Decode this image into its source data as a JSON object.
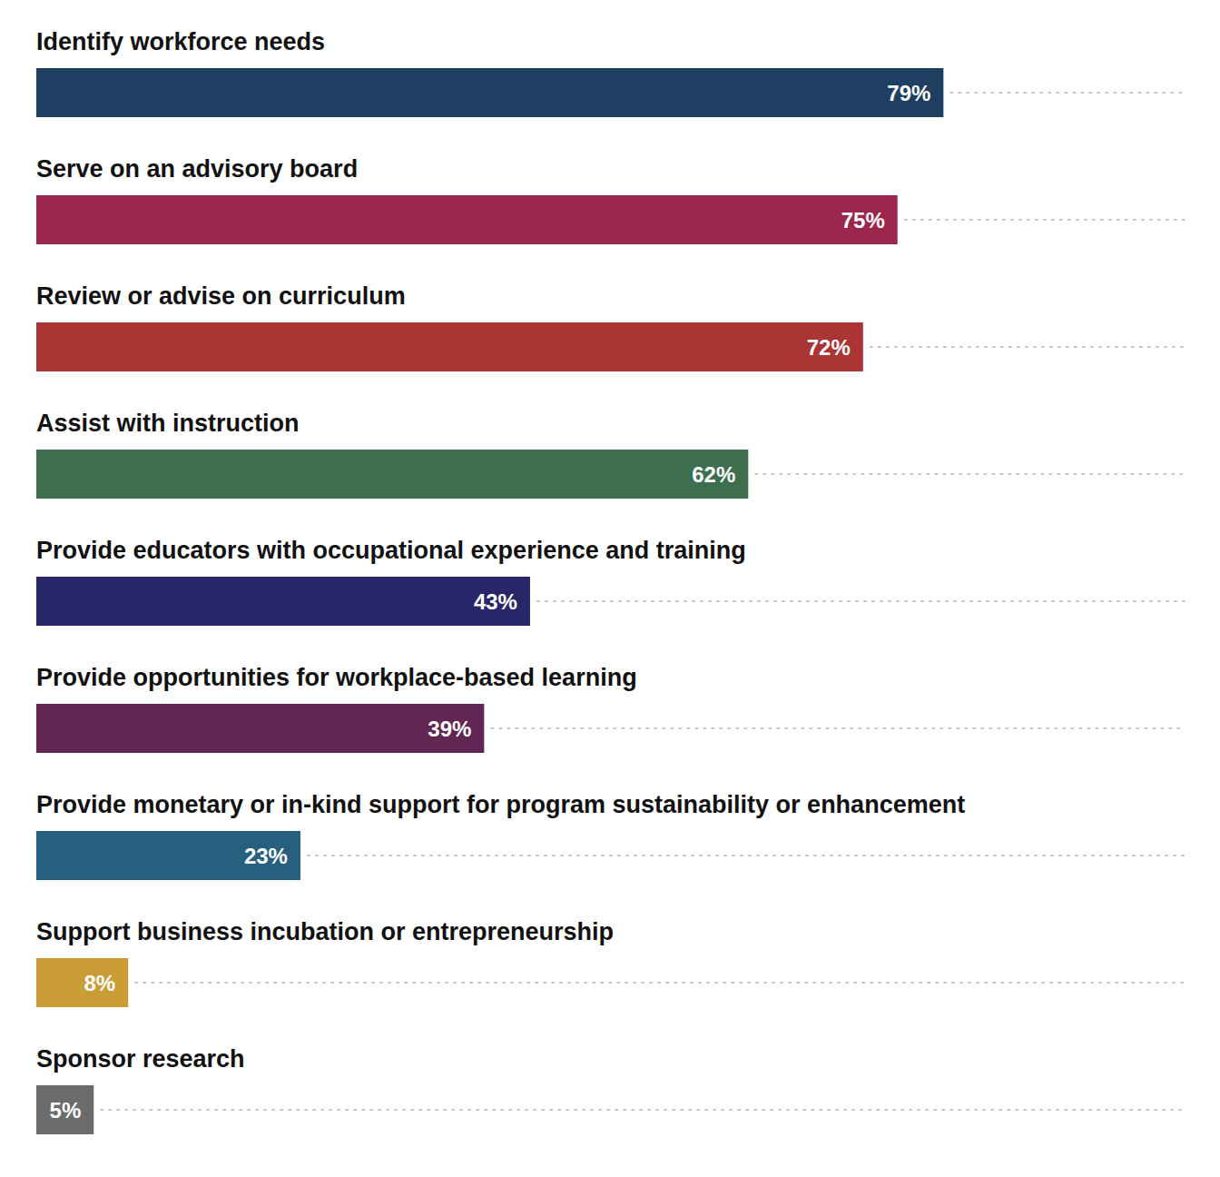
{
  "chart_data": {
    "type": "bar",
    "orientation": "horizontal",
    "categories": [
      "Identify workforce needs",
      "Serve on an advisory board",
      "Review or advise on curriculum",
      "Assist with instruction",
      "Provide educators with occupational experience and training",
      "Provide opportunities for workplace-based learning",
      "Provide monetary or in-kind support for program sustainability or enhancement",
      "Support business incubation or entrepreneurship",
      "Sponsor research"
    ],
    "values": [
      79,
      75,
      72,
      62,
      43,
      39,
      23,
      8,
      5
    ],
    "value_labels": [
      "79%",
      "75%",
      "72%",
      "62%",
      "43%",
      "39%",
      "23%",
      "8%",
      "5%"
    ],
    "colors": [
      "#1e3f62",
      "#9b274c",
      "#ab3434",
      "#3d6e4e",
      "#29256a",
      "#632653",
      "#26607e",
      "#c99c36",
      "#6b6b6b"
    ],
    "xlim": [
      0,
      100
    ],
    "data_labels": true,
    "tick_labels": false,
    "grid": false
  }
}
